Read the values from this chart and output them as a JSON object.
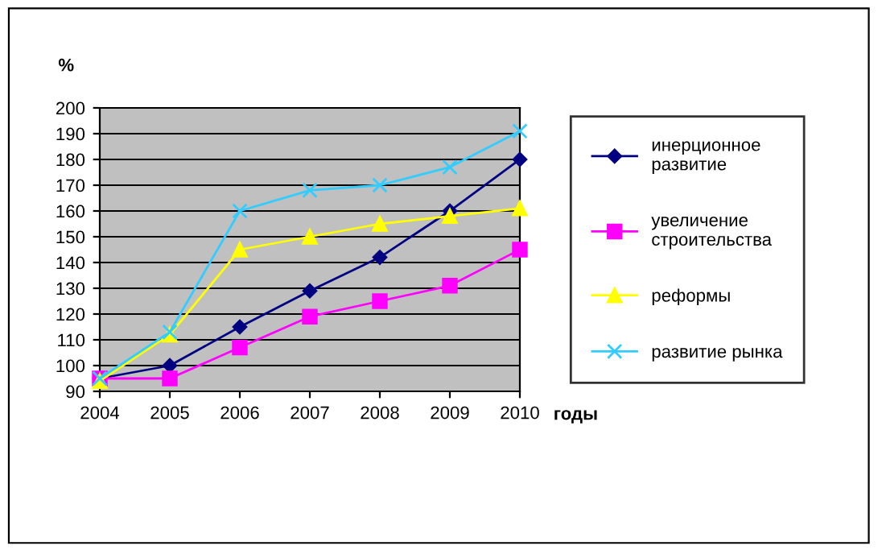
{
  "chart_data": {
    "type": "line",
    "ylabel": "%",
    "xlabel": "годы",
    "x": [
      2004,
      2005,
      2006,
      2007,
      2008,
      2009,
      2010
    ],
    "xlim": [
      2004,
      2010
    ],
    "xticks": [
      2004,
      2005,
      2006,
      2007,
      2008,
      2009,
      2010
    ],
    "ylim": [
      90,
      200
    ],
    "yticks": [
      90,
      100,
      110,
      120,
      130,
      140,
      150,
      160,
      170,
      180,
      190,
      200
    ],
    "grid": "y",
    "legend": "right",
    "series": [
      {
        "name": "инерционное развитие",
        "color": "#000080",
        "marker": "diamond",
        "values": [
          95,
          100,
          115,
          129,
          142,
          160,
          180
        ]
      },
      {
        "name": "увеличение строительства",
        "color": "#ff00ff",
        "marker": "square",
        "values": [
          95,
          95,
          107,
          119,
          125,
          131,
          145
        ]
      },
      {
        "name": "реформы",
        "color": "#ffff00",
        "marker": "triangle",
        "values": [
          94,
          112,
          145,
          150,
          155,
          158,
          161
        ]
      },
      {
        "name": "развитие рынка",
        "color": "#33ccff",
        "marker": "cross",
        "values": [
          95,
          113,
          160,
          168,
          170,
          177,
          191
        ]
      }
    ]
  }
}
